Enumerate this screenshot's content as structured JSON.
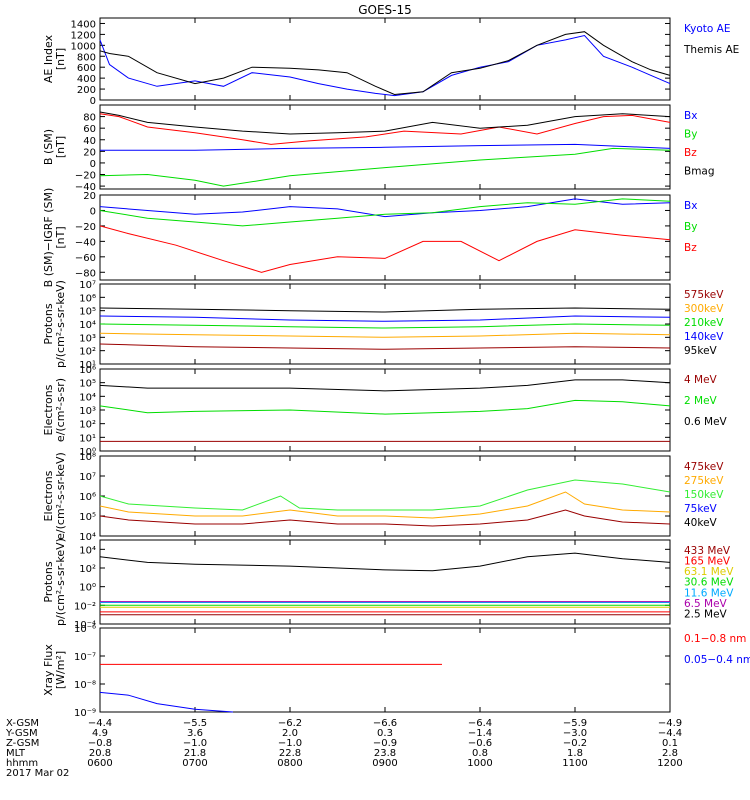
{
  "title": "GOES-15",
  "colors": {
    "black": "#000000",
    "blue": "#0000ff",
    "red": "#ff0000",
    "green": "#00dd00",
    "orange": "#ffaa00",
    "lightgreen": "#33ee33",
    "darkred": "#990000",
    "gold": "#ddcc00",
    "cyan": "#00aaff",
    "purple": "#aa00aa"
  },
  "footer": {
    "row_labels": [
      "X-GSM",
      "Y-GSM",
      "Z-GSM",
      "MLT",
      "hhmm"
    ],
    "date": "2017 Mar 02",
    "columns": [
      [
        "−4.4",
        "4.9",
        "−0.8",
        "20.8",
        "0600"
      ],
      [
        "−5.5",
        "3.6",
        "−1.0",
        "21.8",
        "0700"
      ],
      [
        "−6.2",
        "2.0",
        "−1.0",
        "22.8",
        "0800"
      ],
      [
        "−6.6",
        "0.3",
        "−0.9",
        "23.8",
        "0900"
      ],
      [
        "−6.4",
        "−1.4",
        "−0.6",
        "0.8",
        "1000"
      ],
      [
        "−5.9",
        "−3.0",
        "−0.2",
        "1.8",
        "1100"
      ],
      [
        "−4.9",
        "−4.4",
        "0.1",
        "2.8",
        "1200"
      ]
    ]
  },
  "chart_data": [
    {
      "type": "line",
      "ylabel": "AE Index\n[nT]",
      "ylim": [
        0,
        1500
      ],
      "yscale": "linear",
      "yticks": [
        "0",
        "200",
        "400",
        "600",
        "800",
        "1000",
        "1200",
        "1400"
      ],
      "ytick_values": [
        0,
        200,
        400,
        600,
        800,
        1000,
        1200,
        1400
      ],
      "xlim": [
        6,
        12
      ],
      "series": [
        {
          "name": "Kyoto AE",
          "color": "blue",
          "x": [
            6.0,
            6.1,
            6.3,
            6.6,
            7.0,
            7.3,
            7.6,
            8.0,
            8.3,
            8.6,
            8.9,
            9.1,
            9.4,
            9.7,
            10.0,
            10.3,
            10.6,
            10.9,
            11.1,
            11.3,
            11.6,
            11.8,
            12.0
          ],
          "y": [
            1100,
            650,
            400,
            250,
            350,
            250,
            500,
            420,
            300,
            200,
            120,
            80,
            150,
            450,
            600,
            700,
            1000,
            1100,
            1180,
            800,
            600,
            450,
            300
          ]
        },
        {
          "name": "Themis AE",
          "color": "black",
          "x": [
            6.0,
            6.1,
            6.3,
            6.6,
            7.0,
            7.3,
            7.6,
            8.0,
            8.3,
            8.6,
            8.9,
            9.1,
            9.4,
            9.7,
            10.0,
            10.3,
            10.6,
            10.9,
            11.1,
            11.3,
            11.6,
            11.8,
            12.0
          ],
          "y": [
            900,
            850,
            800,
            500,
            300,
            400,
            600,
            580,
            550,
            500,
            250,
            100,
            150,
            500,
            580,
            720,
            1000,
            1200,
            1250,
            1000,
            700,
            550,
            450
          ]
        }
      ]
    },
    {
      "type": "line",
      "ylabel": "B (SM)\n[nT]",
      "ylim": [
        -45,
        100
      ],
      "yscale": "linear",
      "yticks": [
        "−40",
        "−20",
        "0",
        "20",
        "40",
        "60",
        "80"
      ],
      "ytick_values": [
        -40,
        -20,
        0,
        20,
        40,
        60,
        80
      ],
      "xlim": [
        6,
        12
      ],
      "series": [
        {
          "name": "Bx",
          "color": "blue",
          "x": [
            6.0,
            7.0,
            8.0,
            9.0,
            10.0,
            11.0,
            12.0
          ],
          "y": [
            22,
            22,
            25,
            27,
            30,
            32,
            25
          ]
        },
        {
          "name": "By",
          "color": "green",
          "x": [
            6.0,
            6.5,
            7.0,
            7.3,
            7.7,
            8.0,
            9.0,
            10.0,
            11.0,
            11.4,
            12.0
          ],
          "y": [
            -22,
            -20,
            -30,
            -40,
            -30,
            -22,
            -8,
            5,
            15,
            25,
            22
          ]
        },
        {
          "name": "Bz",
          "color": "red",
          "x": [
            6.0,
            6.2,
            6.5,
            7.0,
            7.5,
            7.8,
            8.2,
            8.8,
            9.2,
            9.8,
            10.2,
            10.6,
            11.0,
            11.3,
            11.6,
            12.0
          ],
          "y": [
            85,
            80,
            62,
            52,
            40,
            32,
            38,
            45,
            55,
            50,
            62,
            50,
            68,
            80,
            82,
            70
          ]
        },
        {
          "name": "Bmag",
          "color": "black",
          "x": [
            6.0,
            6.2,
            6.5,
            7.0,
            7.5,
            8.0,
            8.5,
            9.0,
            9.5,
            10.0,
            10.5,
            11.0,
            11.5,
            12.0
          ],
          "y": [
            88,
            82,
            70,
            62,
            55,
            50,
            52,
            55,
            70,
            60,
            65,
            80,
            85,
            80
          ]
        }
      ]
    },
    {
      "type": "line",
      "ylabel": "B (SM)−IGRF (SM)\n[nT]",
      "ylim": [
        -90,
        20
      ],
      "yscale": "linear",
      "yticks": [
        "−80",
        "−60",
        "−40",
        "−20",
        "0",
        "20"
      ],
      "ytick_values": [
        -80,
        -60,
        -40,
        -20,
        0,
        20
      ],
      "xlim": [
        6,
        12
      ],
      "series": [
        {
          "name": "Bx",
          "color": "blue",
          "x": [
            6.0,
            6.5,
            7.0,
            7.5,
            8.0,
            8.5,
            9.0,
            9.5,
            10.0,
            10.5,
            11.0,
            11.5,
            12.0
          ],
          "y": [
            5,
            0,
            -5,
            -2,
            5,
            2,
            -8,
            -3,
            0,
            5,
            15,
            8,
            10
          ]
        },
        {
          "name": "By",
          "color": "green",
          "x": [
            6.0,
            6.5,
            7.0,
            7.5,
            8.0,
            8.5,
            9.0,
            9.5,
            10.0,
            10.5,
            11.0,
            11.5,
            12.0
          ],
          "y": [
            0,
            -10,
            -15,
            -20,
            -15,
            -10,
            -5,
            -3,
            5,
            10,
            8,
            15,
            12
          ]
        },
        {
          "name": "Bz",
          "color": "red",
          "x": [
            6.0,
            6.3,
            6.8,
            7.3,
            7.7,
            8.0,
            8.5,
            9.0,
            9.4,
            9.8,
            10.2,
            10.6,
            11.0,
            11.5,
            12.0
          ],
          "y": [
            -20,
            -30,
            -45,
            -65,
            -80,
            -70,
            -60,
            -62,
            -40,
            -40,
            -65,
            -40,
            -25,
            -32,
            -38
          ]
        }
      ]
    },
    {
      "type": "line",
      "ylabel": "Protons\np/(cm²-s-sr-keV)",
      "ylim": [
        1,
        7
      ],
      "yscale": "log",
      "yticks": [
        "10¹",
        "10²",
        "10³",
        "10⁴",
        "10⁵",
        "10⁶",
        "10⁷"
      ],
      "ytick_values": [
        1,
        2,
        3,
        4,
        5,
        6,
        7
      ],
      "xlim": [
        6,
        12
      ],
      "series": [
        {
          "name": "575keV",
          "color": "darkred",
          "x": [
            6.0,
            7.0,
            8.0,
            9.0,
            10.0,
            11.0,
            12.0
          ],
          "y": [
            2.5,
            2.3,
            2.2,
            2.1,
            2.2,
            2.3,
            2.2
          ]
        },
        {
          "name": "300keV",
          "color": "orange",
          "x": [
            6.0,
            7.0,
            8.0,
            9.0,
            10.0,
            11.0,
            12.0
          ],
          "y": [
            3.3,
            3.2,
            3.1,
            3.0,
            3.1,
            3.3,
            3.2
          ]
        },
        {
          "name": "210keV",
          "color": "green",
          "x": [
            6.0,
            7.0,
            8.0,
            9.0,
            10.0,
            11.0,
            12.0
          ],
          "y": [
            4.0,
            3.9,
            3.8,
            3.7,
            3.8,
            4.0,
            3.9
          ]
        },
        {
          "name": "140keV",
          "color": "blue",
          "x": [
            6.0,
            7.0,
            8.0,
            9.0,
            10.0,
            11.0,
            12.0
          ],
          "y": [
            4.6,
            4.5,
            4.3,
            4.2,
            4.3,
            4.6,
            4.5
          ]
        },
        {
          "name": "95keV",
          "color": "black",
          "x": [
            6.0,
            7.0,
            8.0,
            9.0,
            10.0,
            11.0,
            12.0
          ],
          "y": [
            5.2,
            5.1,
            5.0,
            4.9,
            5.1,
            5.2,
            5.1
          ]
        }
      ]
    },
    {
      "type": "line",
      "ylabel": "Electrons\ne/(cm²-s-sr)",
      "ylim": [
        0,
        6
      ],
      "yscale": "log",
      "yticks": [
        "10⁰",
        "10¹",
        "10²",
        "10³",
        "10⁴",
        "10⁵",
        "10⁶"
      ],
      "ytick_values": [
        0,
        1,
        2,
        3,
        4,
        5,
        6
      ],
      "xlim": [
        6,
        12
      ],
      "series": [
        {
          "name": "4 MeV",
          "color": "darkred",
          "x": [
            6.0,
            7.0,
            8.0,
            9.0,
            10.0,
            11.0,
            12.0
          ],
          "y": [
            0.7,
            0.7,
            0.7,
            0.7,
            0.7,
            0.7,
            0.7
          ]
        },
        {
          "name": "2 MeV",
          "color": "green",
          "x": [
            6.0,
            6.5,
            7.0,
            8.0,
            9.0,
            10.0,
            10.5,
            11.0,
            11.5,
            12.0
          ],
          "y": [
            3.3,
            2.8,
            2.9,
            3.0,
            2.7,
            2.9,
            3.1,
            3.7,
            3.6,
            3.3
          ]
        },
        {
          "name": "0.6 MeV",
          "color": "black",
          "x": [
            6.0,
            6.5,
            7.0,
            8.0,
            9.0,
            10.0,
            10.5,
            11.0,
            11.5,
            12.0
          ],
          "y": [
            4.8,
            4.6,
            4.6,
            4.6,
            4.4,
            4.6,
            4.8,
            5.2,
            5.2,
            5.0
          ]
        }
      ]
    },
    {
      "type": "line",
      "ylabel": "Electrons\ne/(cm²-s-sr-keV)",
      "ylim": [
        4,
        8
      ],
      "yscale": "log",
      "yticks": [
        "10⁴",
        "10⁵",
        "10⁶",
        "10⁷",
        "10⁸"
      ],
      "ytick_values": [
        4,
        5,
        6,
        7,
        8
      ],
      "xlim": [
        6,
        12
      ],
      "series": [
        {
          "name": "475keV",
          "color": "darkred",
          "x": [
            6.0,
            6.3,
            7.0,
            7.5,
            8.0,
            8.5,
            9.0,
            9.5,
            10.0,
            10.5,
            10.9,
            11.1,
            11.5,
            12.0
          ],
          "y": [
            5.0,
            4.8,
            4.6,
            4.6,
            4.8,
            4.6,
            4.6,
            4.5,
            4.6,
            4.8,
            5.3,
            5.0,
            4.7,
            4.6
          ]
        },
        {
          "name": "275keV",
          "color": "orange",
          "x": [
            6.0,
            6.3,
            7.0,
            7.5,
            8.0,
            8.5,
            9.0,
            9.5,
            10.0,
            10.5,
            10.9,
            11.1,
            11.5,
            12.0
          ],
          "y": [
            5.5,
            5.2,
            5.0,
            5.0,
            5.3,
            5.0,
            5.0,
            4.9,
            5.1,
            5.5,
            6.2,
            5.6,
            5.3,
            5.2
          ]
        },
        {
          "name": "150keV",
          "color": "lightgreen",
          "x": [
            6.0,
            6.3,
            7.0,
            7.5,
            7.9,
            8.1,
            8.5,
            9.0,
            9.5,
            10.0,
            10.5,
            11.0,
            11.5,
            12.0
          ],
          "y": [
            6.0,
            5.6,
            5.4,
            5.3,
            6.0,
            5.4,
            5.3,
            5.3,
            5.3,
            5.5,
            6.3,
            6.8,
            6.6,
            6.2
          ]
        },
        {
          "name": "75keV",
          "color": "blue",
          "x": [],
          "y": []
        },
        {
          "name": "40keV",
          "color": "black",
          "x": [],
          "y": []
        }
      ]
    },
    {
      "type": "line",
      "ylabel": "Protons\np/(cm²-s-sr-keV)",
      "ylim": [
        -4,
        5
      ],
      "yscale": "log",
      "yticks": [
        "10⁻⁴",
        "10⁻²",
        "10⁰",
        "10²",
        "10⁴"
      ],
      "ytick_values": [
        -4,
        -2,
        0,
        2,
        4
      ],
      "xlim": [
        6,
        12
      ],
      "series": [
        {
          "name": "433 MeV",
          "color": "darkred",
          "x": [
            6.0,
            12.0
          ],
          "y": [
            -3.0,
            -3.0
          ]
        },
        {
          "name": "165 MeV",
          "color": "red",
          "x": [
            6.0,
            12.0
          ],
          "y": [
            -2.7,
            -2.7
          ]
        },
        {
          "name": "63.1 MeV",
          "color": "gold",
          "x": [
            6.0,
            12.0
          ],
          "y": [
            -2.2,
            -2.2
          ]
        },
        {
          "name": "30.6 MeV",
          "color": "green",
          "x": [
            6.0,
            12.0
          ],
          "y": [
            -2.0,
            -2.0
          ]
        },
        {
          "name": "11.6 MeV",
          "color": "cyan",
          "x": [
            6.0,
            12.0
          ],
          "y": [
            -1.7,
            -1.7
          ]
        },
        {
          "name": "6.5 MeV",
          "color": "purple",
          "x": [
            6.0,
            12.0
          ],
          "y": [
            -1.6,
            -1.6
          ]
        },
        {
          "name": "2.5 MeV",
          "color": "black",
          "x": [
            6.0,
            6.5,
            7.0,
            8.0,
            9.0,
            9.5,
            10.0,
            10.5,
            11.0,
            11.5,
            12.0
          ],
          "y": [
            3.2,
            2.6,
            2.4,
            2.2,
            1.8,
            1.7,
            2.2,
            3.2,
            3.6,
            3.0,
            2.6
          ]
        }
      ]
    },
    {
      "type": "line",
      "ylabel": "Xray Flux\n[W/m²]",
      "ylim": [
        -9,
        -6
      ],
      "yscale": "log",
      "yticks": [
        "10⁻⁹",
        "10⁻⁸",
        "10⁻⁷",
        "10⁻⁶"
      ],
      "ytick_values": [
        -9,
        -8,
        -7,
        -6
      ],
      "xlim": [
        6,
        12
      ],
      "series": [
        {
          "name": "0.1−0.8 nm",
          "color": "red",
          "x": [
            6.0,
            7.0,
            8.0,
            9.0,
            9.6
          ],
          "y": [
            -7.3,
            -7.3,
            -7.3,
            -7.3,
            -7.3
          ]
        },
        {
          "name": "0.05−0.4 nm",
          "color": "blue",
          "x": [
            6.0,
            6.3,
            6.6,
            7.0,
            7.4
          ],
          "y": [
            -8.3,
            -8.4,
            -8.7,
            -8.9,
            -9.0
          ]
        }
      ]
    }
  ]
}
